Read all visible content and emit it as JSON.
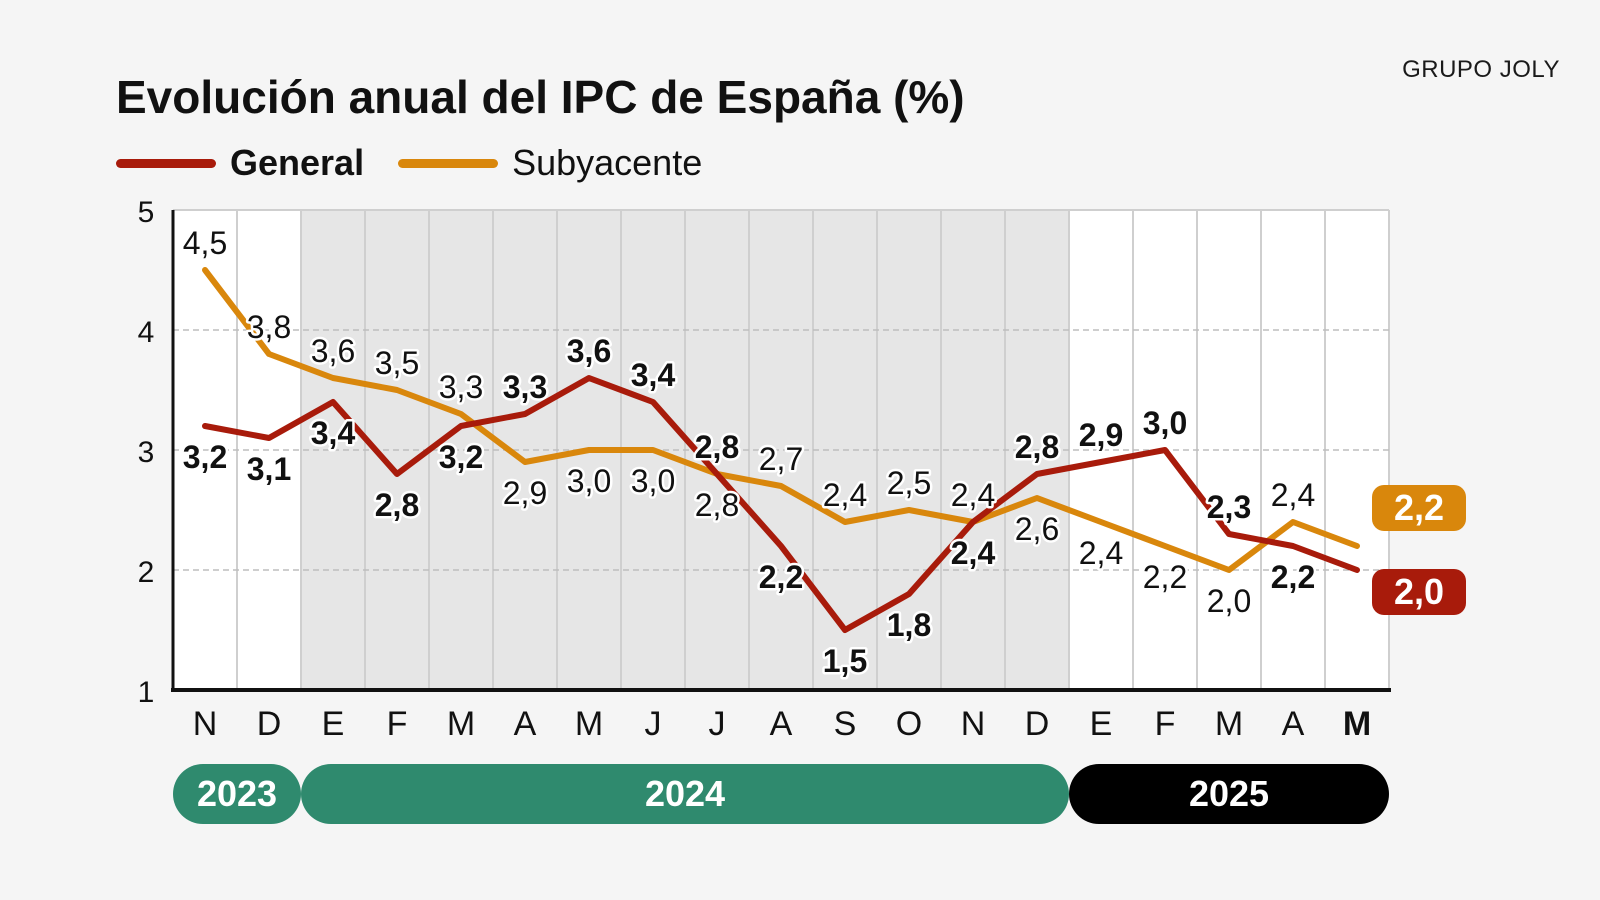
{
  "brand": "GRUPO JOLY",
  "title": "Evolución anual del IPC de España (%)",
  "colors": {
    "general": "#a81b0b",
    "subyacente": "#d9870c",
    "shade": "#e6e6e6",
    "year_green": "#2f8a6e",
    "year_black": "#000000"
  },
  "chart_data": {
    "type": "line",
    "title": "Evolución anual del IPC de España (%)",
    "categories": [
      "N",
      "D",
      "E",
      "F",
      "M",
      "A",
      "M",
      "J",
      "J",
      "A",
      "S",
      "O",
      "N",
      "D",
      "E",
      "F",
      "M",
      "A",
      "M"
    ],
    "last_category_bold": true,
    "ylim": [
      1,
      5
    ],
    "yticks": [
      1,
      2,
      3,
      4,
      5
    ],
    "grid": true,
    "legend": "top-left",
    "shaded_range": [
      2,
      13
    ],
    "series": [
      {
        "name": "General",
        "color": "#a81b0b",
        "values": [
          3.2,
          3.1,
          3.4,
          2.8,
          3.2,
          3.3,
          3.6,
          3.4,
          2.8,
          2.2,
          1.5,
          1.8,
          2.4,
          2.8,
          2.9,
          3.0,
          2.3,
          2.2,
          2.0
        ],
        "labels": [
          "3,2",
          "3,1",
          "3,4",
          "2,8",
          "3,2",
          "3,3",
          "3,6",
          "3,4",
          "2,8",
          "2,2",
          "1,5",
          "1,8",
          "2,4",
          "2,8",
          "2,9",
          "3,0",
          "2,3",
          "2,2",
          "2,0"
        ],
        "label_side": [
          "below",
          "below",
          "below",
          "below",
          "below",
          "above",
          "above",
          "above",
          "above",
          "below",
          "below",
          "below",
          "below",
          "above",
          "above",
          "above",
          "above",
          "below",
          "badge"
        ]
      },
      {
        "name": "Subyacente",
        "color": "#d9870c",
        "values": [
          4.5,
          3.8,
          3.6,
          3.5,
          3.3,
          2.9,
          3.0,
          3.0,
          2.8,
          2.7,
          2.4,
          2.5,
          2.4,
          2.6,
          2.4,
          2.2,
          2.0,
          2.4,
          2.2
        ],
        "labels": [
          "4,5",
          "3,8",
          "3,6",
          "3,5",
          "3,3",
          "2,9",
          "3,0",
          "3,0",
          "2,8",
          "2,7",
          "2,4",
          "2,5",
          "2,4",
          "2,6",
          "2,4",
          "2,2",
          "2,0",
          "2,4",
          "2,2"
        ],
        "label_side": [
          "above",
          "above",
          "above",
          "above",
          "above",
          "below",
          "below",
          "below",
          "below",
          "above",
          "above",
          "above",
          "above",
          "below",
          "below",
          "below",
          "below",
          "above",
          "badge"
        ]
      }
    ],
    "years": [
      {
        "label": "2023",
        "start": 0,
        "end": 1,
        "color": "#2f8a6e"
      },
      {
        "label": "2024",
        "start": 2,
        "end": 13,
        "color": "#2f8a6e"
      },
      {
        "label": "2025",
        "start": 14,
        "end": 18,
        "color": "#000000"
      }
    ]
  }
}
